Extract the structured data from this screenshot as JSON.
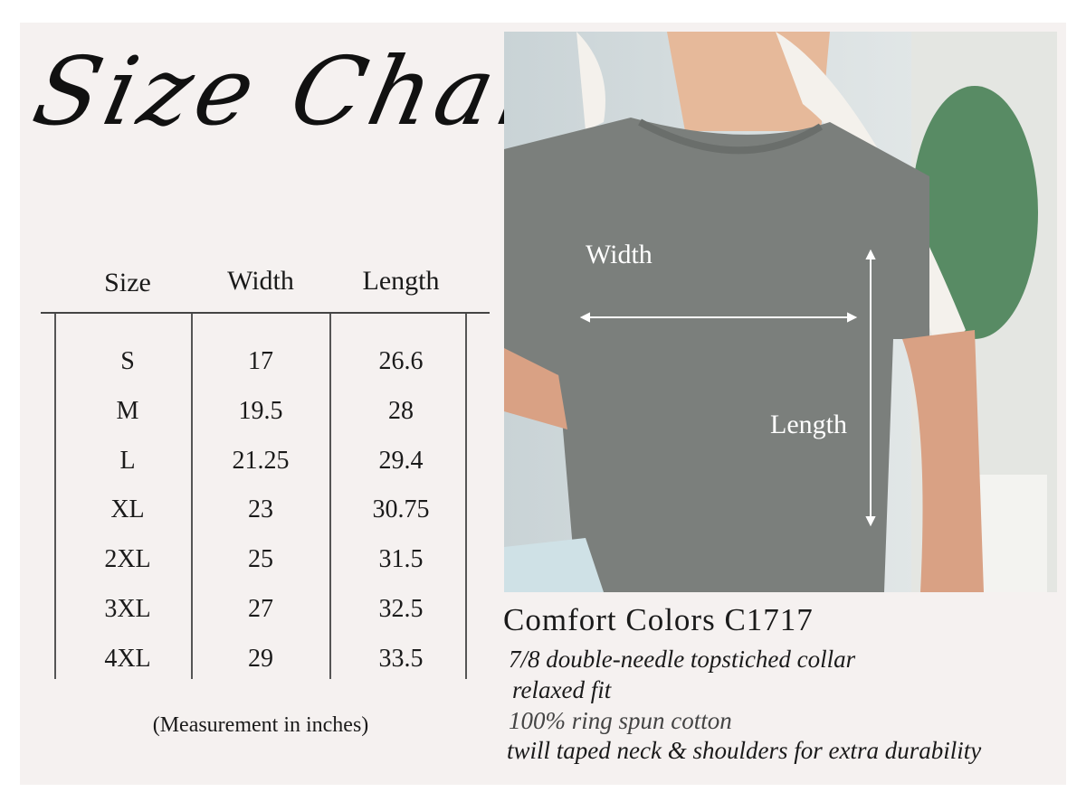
{
  "title": "Size Chart",
  "table": {
    "headers": [
      "Size",
      "Width",
      "Length"
    ],
    "rows": [
      [
        "S",
        "17",
        "26.6"
      ],
      [
        "M",
        "19.5",
        "28"
      ],
      [
        "L",
        "21.25",
        "29.4"
      ],
      [
        "XL",
        "23",
        "30.75"
      ],
      [
        "2XL",
        "25",
        "31.5"
      ],
      [
        "3XL",
        "27",
        "32.5"
      ],
      [
        "4XL",
        "29",
        "33.5"
      ]
    ],
    "note": "(Measurement in inches)"
  },
  "photo": {
    "width_label": "Width",
    "length_label": "Length",
    "shirt_color": "#7b7f7c"
  },
  "product": {
    "name": "Comfort Colors C1717",
    "features": [
      "7/8 double-needle topstiched collar",
      "relaxed fit",
      "100% ring spun cotton",
      "twill taped neck & shoulders for extra durability"
    ]
  }
}
